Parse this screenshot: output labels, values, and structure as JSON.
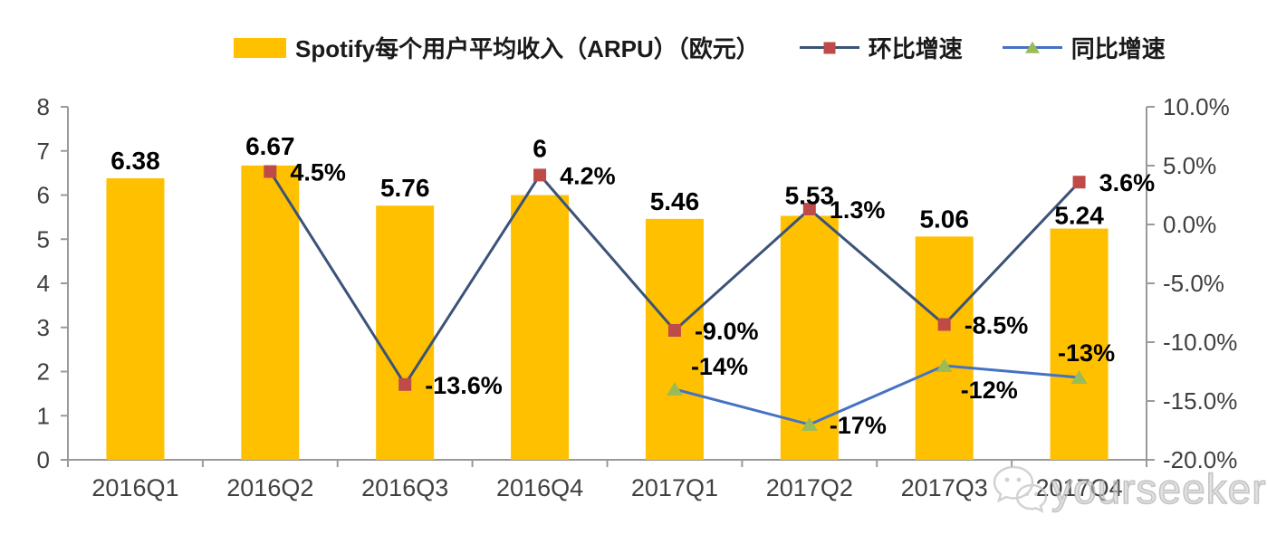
{
  "legend": {
    "bar_label": "Spotify每个用户平均收入（ARPU）（欧元）",
    "qoq_label": "环比增速",
    "yoy_label": "同比增速"
  },
  "watermark": {
    "text": "yourseeker",
    "icon": "wechat-icon"
  },
  "colors": {
    "bar": "#FFC000",
    "qoq_line": "#3B5377",
    "qoq_marker": "#BE4B48",
    "yoy_line": "#4472C4",
    "yoy_marker": "#9BBB59",
    "axis": "#9a9a9a",
    "tick_text": "#3f3f3f",
    "data_label": "#000000"
  },
  "chart_data": {
    "type": "bar",
    "categories": [
      "2016Q1",
      "2016Q2",
      "2016Q3",
      "2016Q4",
      "2017Q1",
      "2017Q2",
      "2017Q3",
      "2017Q4"
    ],
    "series": [
      {
        "name": "Spotify每个用户平均收入（ARPU）（欧元）",
        "type": "bar",
        "axis": "left",
        "values": [
          6.38,
          6.67,
          5.76,
          6,
          5.46,
          5.53,
          5.06,
          5.24
        ],
        "labels": [
          "6.38",
          "6.67",
          "5.76",
          "6",
          "5.46",
          "5.53",
          "5.06",
          "5.24"
        ],
        "label_dy": [
          -10,
          -12,
          -10,
          -42,
          -10,
          -13,
          -10,
          -5
        ]
      },
      {
        "name": "环比增速",
        "type": "line",
        "axis": "right",
        "marker": "square",
        "values": [
          null,
          4.5,
          -13.6,
          4.2,
          -9.0,
          1.3,
          -8.5,
          3.6
        ],
        "labels": [
          null,
          "4.5%",
          "-13.6%",
          "4.2%",
          "-9.0%",
          "1.3%",
          "-8.5%",
          "3.6%"
        ],
        "label_positions": [
          null,
          "right",
          "right",
          "right",
          "right",
          "right",
          "right",
          "right"
        ]
      },
      {
        "name": "同比增速",
        "type": "line",
        "axis": "right",
        "marker": "triangle",
        "values": [
          null,
          null,
          null,
          null,
          -14,
          -17,
          -12,
          -13
        ],
        "labels": [
          null,
          null,
          null,
          null,
          "-14%",
          "-17%",
          "-12%",
          "-13%"
        ],
        "label_positions": [
          null,
          null,
          null,
          null,
          "above-right",
          "right",
          "below-right",
          "above"
        ]
      }
    ],
    "left_axis": {
      "min": 0,
      "max": 8,
      "ticks": [
        "0",
        "1",
        "2",
        "3",
        "4",
        "5",
        "6",
        "7",
        "8"
      ]
    },
    "right_axis": {
      "min": -20,
      "max": 10,
      "ticks": [
        "10.0%",
        "5.0%",
        "0.0%",
        "-5.0%",
        "-10.0%",
        "-15.0%",
        "-20.0%"
      ]
    },
    "grid": false,
    "legend_position": "top"
  }
}
